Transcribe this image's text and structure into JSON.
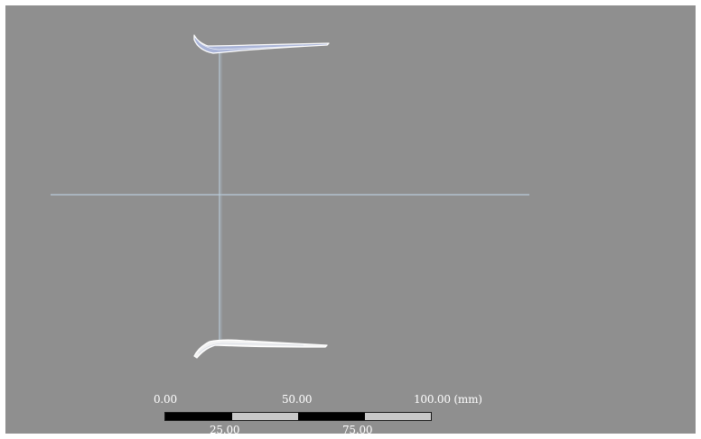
{
  "viewport": {
    "background_color": "#8f8f8f",
    "axis_color": "#b9cbd9",
    "part_outline_color": "#ffffff",
    "selected_fill_color": "#a9b4d8"
  },
  "scale_bar": {
    "labels_top": [
      "0.00",
      "50.00",
      "100.00 (mm)"
    ],
    "labels_bottom": [
      "25.00",
      "75.00"
    ],
    "segment_colors": [
      "#000000",
      "#c8c8c8",
      "#000000",
      "#c8c8c8"
    ]
  }
}
